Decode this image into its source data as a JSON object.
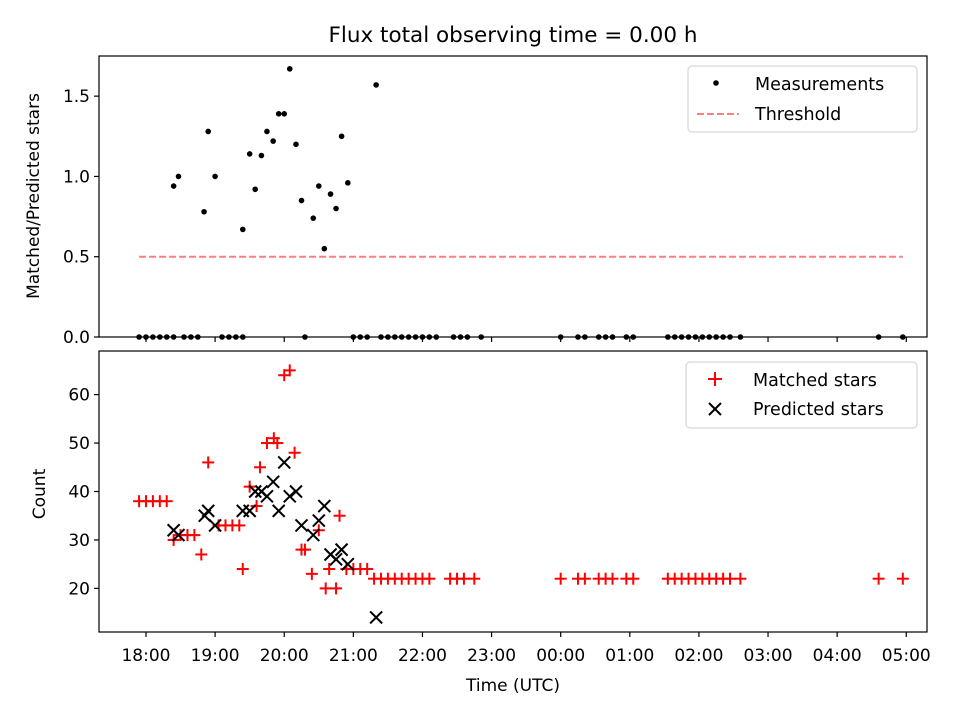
{
  "figure_title": "Flux total observing time = 0.00 h",
  "chart_data": [
    {
      "type": "scatter",
      "title": "Flux total observing time = 0.00 h",
      "xlabel": "",
      "ylabel": "Matched/Predicted stars",
      "x_unit": "hours since 18:00 UTC",
      "xlim": [
        -0.68,
        11.3
      ],
      "ylim": [
        0,
        1.75
      ],
      "yticks": [
        0.0,
        0.5,
        1.0,
        1.5
      ],
      "ytick_labels": [
        "0.0",
        "0.5",
        "1.0",
        "1.5"
      ],
      "grid": false,
      "legend_position": "top-right",
      "legend": [
        {
          "label": "Measurements",
          "marker": "dot",
          "color": "#000000"
        },
        {
          "label": "Threshold",
          "marker": "dashed-line",
          "color": "#ff7f7f"
        }
      ],
      "series": [
        {
          "name": "Measurements",
          "color": "#000000",
          "points": [
            [
              -0.1,
              0
            ],
            [
              0.0,
              0
            ],
            [
              0.1,
              0
            ],
            [
              0.2,
              0
            ],
            [
              0.3,
              0
            ],
            [
              0.4,
              0
            ],
            [
              0.55,
              0
            ],
            [
              0.65,
              0
            ],
            [
              0.75,
              0
            ],
            [
              1.1,
              0
            ],
            [
              1.2,
              0
            ],
            [
              1.3,
              0
            ],
            [
              1.4,
              0
            ],
            [
              2.3,
              0
            ],
            [
              3.0,
              0
            ],
            [
              3.1,
              0
            ],
            [
              3.2,
              0
            ],
            [
              3.4,
              0
            ],
            [
              3.5,
              0
            ],
            [
              3.6,
              0
            ],
            [
              3.7,
              0
            ],
            [
              3.8,
              0
            ],
            [
              3.9,
              0
            ],
            [
              4.0,
              0
            ],
            [
              4.1,
              0
            ],
            [
              4.2,
              0
            ],
            [
              4.45,
              0
            ],
            [
              4.55,
              0
            ],
            [
              4.65,
              0
            ],
            [
              4.85,
              0
            ],
            [
              6.0,
              0
            ],
            [
              6.25,
              0
            ],
            [
              6.35,
              0
            ],
            [
              6.55,
              0
            ],
            [
              6.65,
              0
            ],
            [
              6.75,
              0
            ],
            [
              6.95,
              0
            ],
            [
              7.05,
              0
            ],
            [
              7.55,
              0
            ],
            [
              7.65,
              0
            ],
            [
              7.75,
              0
            ],
            [
              7.85,
              0
            ],
            [
              7.95,
              0
            ],
            [
              8.05,
              0
            ],
            [
              8.15,
              0
            ],
            [
              8.25,
              0
            ],
            [
              8.35,
              0
            ],
            [
              8.45,
              0
            ],
            [
              8.6,
              0
            ],
            [
              10.6,
              0
            ],
            [
              10.95,
              0
            ],
            [
              0.4,
              0.94
            ],
            [
              0.47,
              1.0
            ],
            [
              0.84,
              0.78
            ],
            [
              0.9,
              1.28
            ],
            [
              1.0,
              1.0
            ],
            [
              1.4,
              0.67
            ],
            [
              1.5,
              1.14
            ],
            [
              1.58,
              0.92
            ],
            [
              1.67,
              1.13
            ],
            [
              1.75,
              1.28
            ],
            [
              1.84,
              1.22
            ],
            [
              1.92,
              1.39
            ],
            [
              2.0,
              1.39
            ],
            [
              2.08,
              1.67
            ],
            [
              2.17,
              1.2
            ],
            [
              2.25,
              0.85
            ],
            [
              2.42,
              0.74
            ],
            [
              2.5,
              0.94
            ],
            [
              2.58,
              0.55
            ],
            [
              2.67,
              0.89
            ],
            [
              2.75,
              0.8
            ],
            [
              2.83,
              1.25
            ],
            [
              2.92,
              0.96
            ],
            [
              3.33,
              1.57
            ]
          ]
        },
        {
          "name": "Threshold",
          "color": "#ff7f7f",
          "line_style": "dashed",
          "points": [
            [
              -0.1,
              0.5
            ],
            [
              10.95,
              0.5
            ]
          ]
        }
      ]
    },
    {
      "type": "scatter",
      "xlabel": "Time (UTC)",
      "ylabel": "Count",
      "x_unit": "hours since 18:00 UTC",
      "xlim": [
        -0.68,
        11.3
      ],
      "ylim": [
        11,
        69
      ],
      "xticks": [
        0,
        1,
        2,
        3,
        4,
        5,
        6,
        7,
        8,
        9,
        10,
        11
      ],
      "xtick_labels": [
        "18:00",
        "19:00",
        "20:00",
        "21:00",
        "22:00",
        "23:00",
        "00:00",
        "01:00",
        "02:00",
        "03:00",
        "04:00",
        "05:00"
      ],
      "yticks": [
        20,
        30,
        40,
        50,
        60
      ],
      "ytick_labels": [
        "20",
        "30",
        "40",
        "50",
        "60"
      ],
      "grid": false,
      "legend_position": "top-right",
      "legend": [
        {
          "label": "Matched stars",
          "marker": "plus",
          "color": "#ff0000"
        },
        {
          "label": "Predicted stars",
          "marker": "x",
          "color": "#000000"
        }
      ],
      "series": [
        {
          "name": "Matched stars",
          "marker": "plus",
          "color": "#ff0000",
          "points": [
            [
              -0.1,
              38
            ],
            [
              0.0,
              38
            ],
            [
              0.1,
              38
            ],
            [
              0.2,
              38
            ],
            [
              0.3,
              38
            ],
            [
              0.4,
              30
            ],
            [
              0.5,
              31
            ],
            [
              0.6,
              31
            ],
            [
              0.7,
              31
            ],
            [
              0.8,
              27
            ],
            [
              0.9,
              46
            ],
            [
              1.05,
              33
            ],
            [
              1.15,
              33
            ],
            [
              1.25,
              33
            ],
            [
              1.35,
              33
            ],
            [
              1.4,
              24
            ],
            [
              1.5,
              41
            ],
            [
              1.6,
              37
            ],
            [
              1.65,
              45
            ],
            [
              1.75,
              50
            ],
            [
              1.85,
              51
            ],
            [
              1.9,
              50
            ],
            [
              2.0,
              64
            ],
            [
              2.08,
              65
            ],
            [
              2.15,
              48
            ],
            [
              2.25,
              28
            ],
            [
              2.3,
              28
            ],
            [
              2.4,
              23
            ],
            [
              2.5,
              32
            ],
            [
              2.6,
              20
            ],
            [
              2.65,
              24
            ],
            [
              2.75,
              20
            ],
            [
              2.8,
              35
            ],
            [
              2.9,
              24
            ],
            [
              3.0,
              24
            ],
            [
              3.1,
              24
            ],
            [
              3.2,
              24
            ],
            [
              3.3,
              22
            ],
            [
              3.4,
              22
            ],
            [
              3.5,
              22
            ],
            [
              3.6,
              22
            ],
            [
              3.7,
              22
            ],
            [
              3.8,
              22
            ],
            [
              3.9,
              22
            ],
            [
              4.0,
              22
            ],
            [
              4.1,
              22
            ],
            [
              4.4,
              22
            ],
            [
              4.5,
              22
            ],
            [
              4.6,
              22
            ],
            [
              4.75,
              22
            ],
            [
              6.0,
              22
            ],
            [
              6.25,
              22
            ],
            [
              6.35,
              22
            ],
            [
              6.55,
              22
            ],
            [
              6.65,
              22
            ],
            [
              6.75,
              22
            ],
            [
              6.95,
              22
            ],
            [
              7.05,
              22
            ],
            [
              7.55,
              22
            ],
            [
              7.65,
              22
            ],
            [
              7.75,
              22
            ],
            [
              7.85,
              22
            ],
            [
              7.95,
              22
            ],
            [
              8.05,
              22
            ],
            [
              8.15,
              22
            ],
            [
              8.25,
              22
            ],
            [
              8.35,
              22
            ],
            [
              8.45,
              22
            ],
            [
              8.6,
              22
            ],
            [
              10.6,
              22
            ],
            [
              10.95,
              22
            ]
          ]
        },
        {
          "name": "Predicted stars",
          "marker": "x",
          "color": "#000000",
          "points": [
            [
              0.4,
              32
            ],
            [
              0.47,
              31
            ],
            [
              0.85,
              35
            ],
            [
              0.9,
              36
            ],
            [
              1.0,
              33
            ],
            [
              1.4,
              36
            ],
            [
              1.5,
              36
            ],
            [
              1.58,
              40
            ],
            [
              1.67,
              40
            ],
            [
              1.75,
              39
            ],
            [
              1.84,
              42
            ],
            [
              1.92,
              36
            ],
            [
              2.0,
              46
            ],
            [
              2.08,
              39
            ],
            [
              2.17,
              40
            ],
            [
              2.25,
              33
            ],
            [
              2.42,
              31
            ],
            [
              2.5,
              34
            ],
            [
              2.58,
              37
            ],
            [
              2.67,
              27
            ],
            [
              2.75,
              26
            ],
            [
              2.83,
              28
            ],
            [
              2.92,
              25
            ],
            [
              3.33,
              14
            ]
          ]
        }
      ]
    }
  ]
}
